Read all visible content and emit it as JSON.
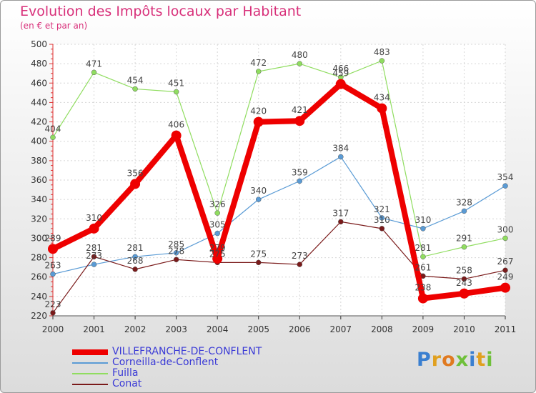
{
  "chart_data": {
    "type": "line",
    "title": "Evolution des Impôts locaux par Habitant",
    "subtitle": "(en € et par an)",
    "xlabel": "",
    "ylabel": "",
    "x": [
      "2000",
      "2001",
      "2002",
      "2003",
      "2004",
      "2005",
      "2006",
      "2007",
      "2008",
      "2009",
      "2010",
      "2011"
    ],
    "ylim": [
      220,
      500
    ],
    "yticks": [
      220,
      240,
      260,
      280,
      300,
      320,
      340,
      360,
      380,
      400,
      420,
      440,
      460,
      480,
      500
    ],
    "grid": true,
    "legend_position": "bottom-left",
    "series": [
      {
        "name": "VILLEFRANCHE-DE-CONFLENT",
        "color": "#ee0000",
        "values": [
          289,
          310,
          356,
          406,
          279,
          420,
          421,
          459,
          434,
          238,
          243,
          249
        ]
      },
      {
        "name": "Corneilla-de-Conflent",
        "color": "#5a9bd5",
        "values": [
          263,
          273,
          281,
          285,
          305,
          340,
          359,
          384,
          321,
          310,
          328,
          354
        ]
      },
      {
        "name": "Fuilla",
        "color": "#90dd60",
        "values": [
          404,
          471,
          454,
          451,
          326,
          472,
          480,
          466,
          483,
          281,
          291,
          300
        ]
      },
      {
        "name": "Conat",
        "color": "#7a1a1a",
        "values": [
          223,
          281,
          268,
          278,
          275,
          275,
          273,
          317,
          310,
          261,
          258,
          267
        ]
      }
    ],
    "data_labels": [
      [
        "289",
        "310",
        "356",
        "406",
        "279",
        "420",
        "421",
        "459",
        "434",
        "238",
        "243",
        "249"
      ],
      [
        "263",
        "273",
        "281",
        "285",
        "305",
        "340",
        "359",
        "384",
        "321",
        "310",
        "328",
        "354"
      ],
      [
        "404",
        "471",
        "454",
        "451",
        "326",
        "472",
        "480",
        "466",
        "483",
        "281",
        "291",
        "300"
      ],
      [
        "223",
        "281",
        "268",
        "278",
        "275",
        "275",
        "273",
        "317",
        "310",
        "261",
        "258",
        "267"
      ]
    ]
  },
  "branding": {
    "logo_text": "Proxiti"
  }
}
